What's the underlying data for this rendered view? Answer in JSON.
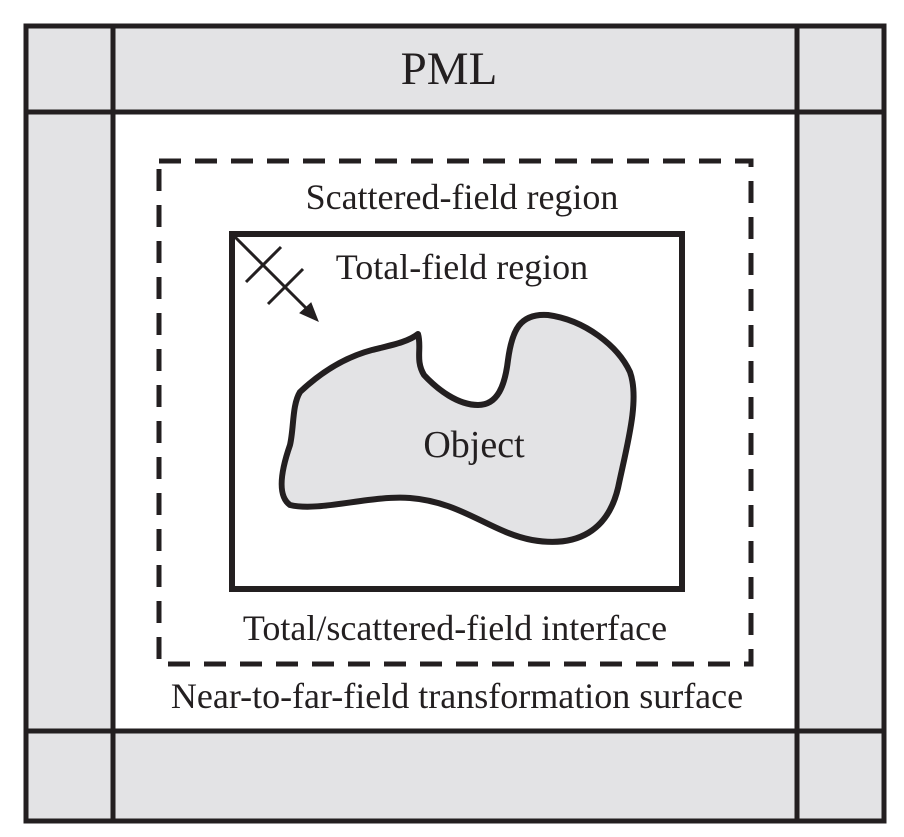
{
  "labels": {
    "pml": "PML",
    "scattered_region": "Scattered-field region",
    "total_region": "Total-field region",
    "object": "Object",
    "interface": "Total/scattered-field interface",
    "ntff_surface": "Near-to-far-field transformation surface"
  },
  "colors": {
    "stroke": "#231f20",
    "pml_fill": "#e3e3e5",
    "object_fill": "#e3e3e5",
    "background": "#ffffff"
  },
  "icons": {
    "incident_wave": "plane-wave-arrow-icon"
  }
}
